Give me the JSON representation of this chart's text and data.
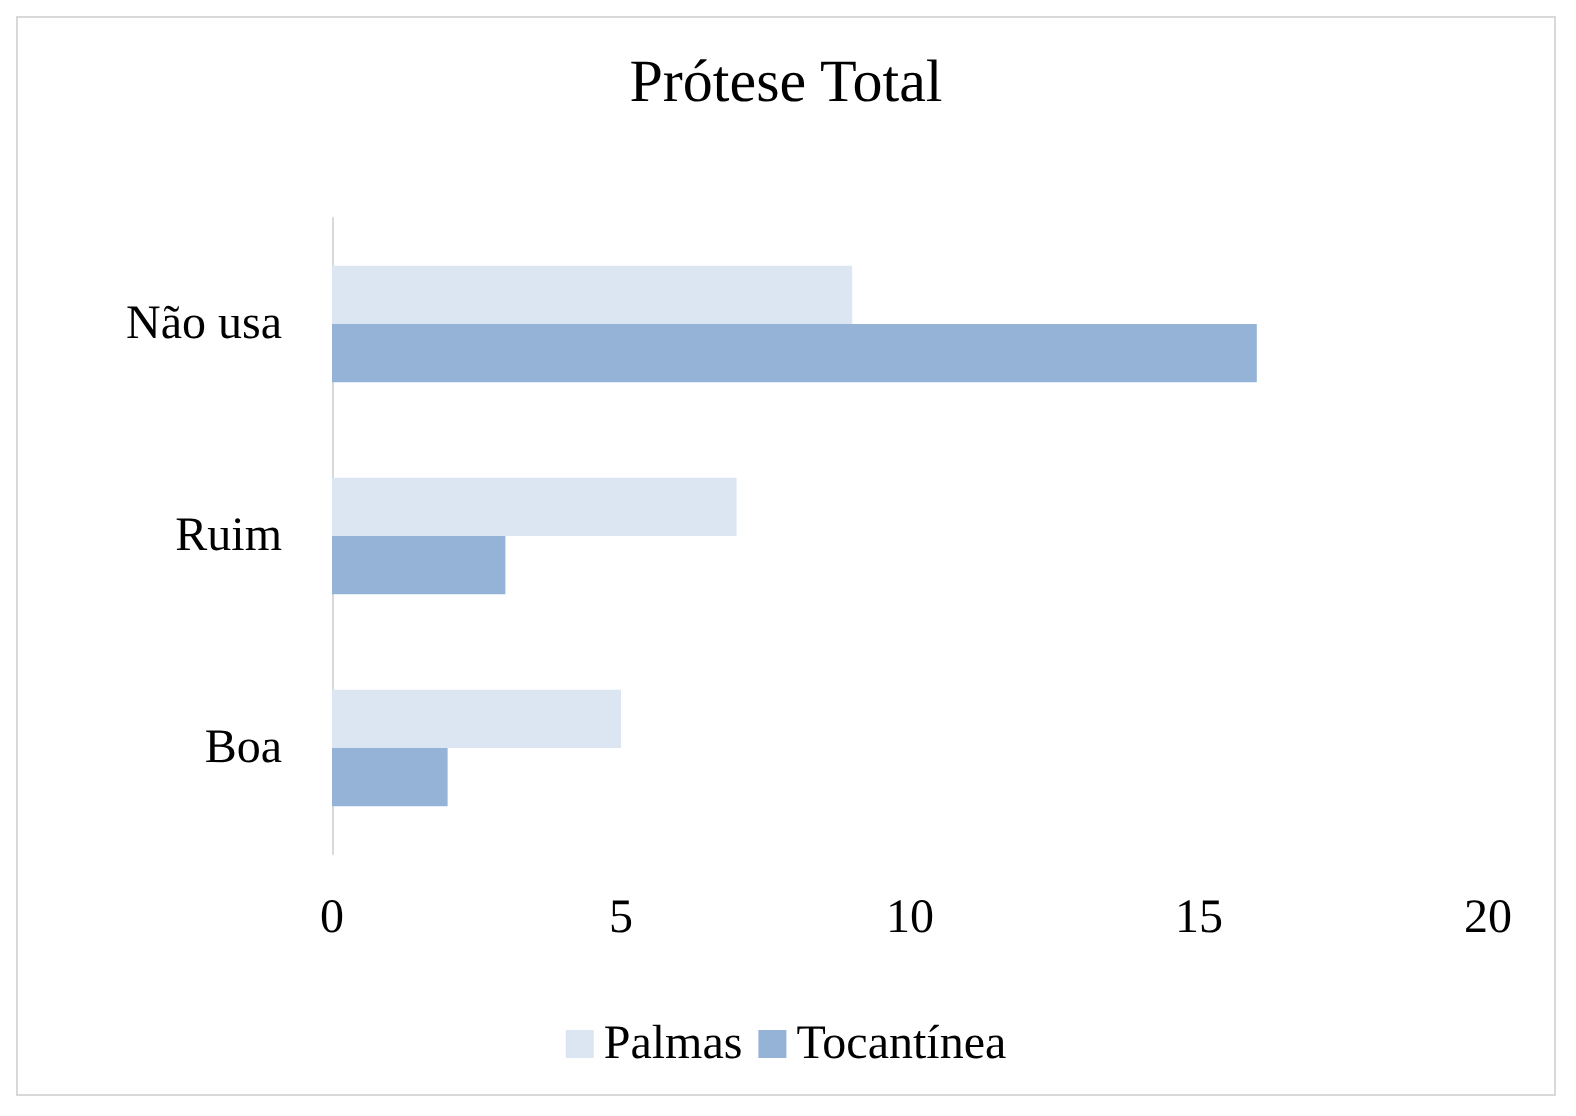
{
  "chart_data": {
    "type": "bar",
    "orientation": "horizontal",
    "title": "Prótese Total",
    "categories": [
      "Não usa",
      "Ruim",
      "Boa"
    ],
    "series": [
      {
        "name": "Palmas",
        "color": "#dce6f2",
        "values": [
          9,
          7,
          5
        ]
      },
      {
        "name": "Tocantínea",
        "color": "#95b3d7",
        "values": [
          16,
          3,
          2
        ]
      }
    ],
    "xlim": [
      0,
      20
    ],
    "xticks": [
      0,
      5,
      10,
      15,
      20
    ],
    "grid": false,
    "legend": "bottom"
  }
}
